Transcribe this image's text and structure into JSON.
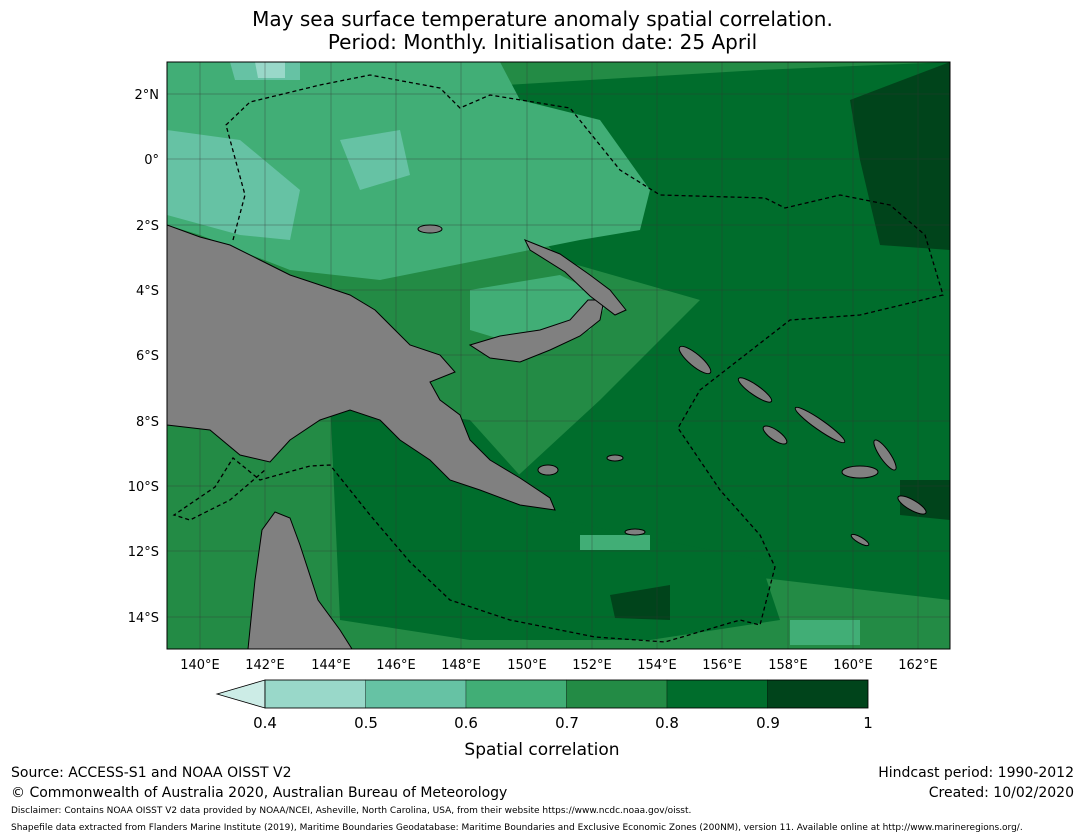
{
  "title": {
    "line1": "May sea surface temperature anomaly spatial correlation.",
    "line2": "Period: Monthly. Initialisation date: 25 April"
  },
  "map": {
    "lat_ticks": [
      "2°N",
      "0°",
      "2°S",
      "4°S",
      "6°S",
      "8°S",
      "10°S",
      "12°S",
      "14°S"
    ],
    "lon_ticks": [
      "140°E",
      "142°E",
      "144°E",
      "146°E",
      "148°E",
      "150°E",
      "152°E",
      "154°E",
      "156°E",
      "158°E",
      "160°E",
      "162°E"
    ],
    "land_color": "#808080"
  },
  "colorbar": {
    "label": "Spatial correlation",
    "ticks": [
      "0.4",
      "0.5",
      "0.6",
      "0.7",
      "0.8",
      "0.9",
      "1"
    ],
    "colors": [
      "#ccece6",
      "#99d8c9",
      "#66c2a4",
      "#41ae76",
      "#238b45",
      "#006d2c",
      "#00441b"
    ]
  },
  "footer": {
    "source": "Source: ACCESS-S1 and NOAA OISST V2",
    "copyright": "© Commonwealth of Australia 2020, Australian Bureau of Meteorology",
    "hindcast": "Hindcast period: 1990-2012",
    "created": "Created: 10/02/2020",
    "disclaimer": "Disclaimer: Contains NOAA OISST V2 data provided by NOAA/NCEI, Asheville, North Carolina, USA, from their website https://www.ncdc.noaa.gov/oisst.",
    "shapefile": "Shapefile data extracted from Flanders Marine Institute (2019), Maritime Boundaries Geodatabase: Maritime Boundaries and Exclusive Economic Zones (200NM), version 11. Available online at http://www.marineregions.org/."
  }
}
